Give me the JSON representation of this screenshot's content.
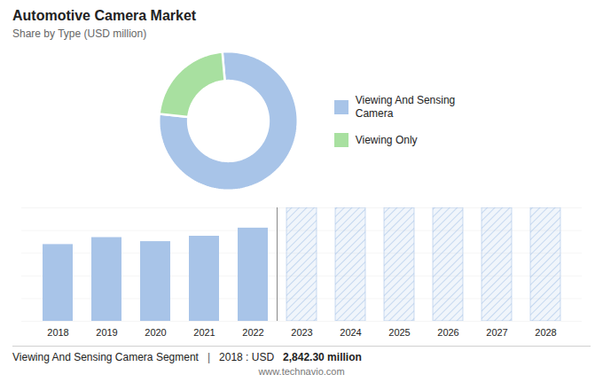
{
  "chart_data": [
    {
      "type": "pie",
      "title": "Automotive Camera Market",
      "subtitle": "Share by Type (USD million)",
      "categories": [
        "Viewing And Sensing\nCamera",
        "Viewing Only"
      ],
      "values": [
        78,
        22
      ],
      "colors": [
        "#a8c4e8",
        "#a8e0a0"
      ],
      "legend": "right"
    },
    {
      "type": "bar",
      "categories": [
        "2018",
        "2019",
        "2020",
        "2021",
        "2022",
        "2023",
        "2024",
        "2025",
        "2026",
        "2027",
        "2028"
      ],
      "values": [
        2842,
        3100,
        2950,
        3150,
        3450,
        4200,
        4200,
        4200,
        4200,
        4200,
        4200
      ],
      "color": "#a8c4e8",
      "colors": [
        "#a8c4e8",
        "#a8c4e8",
        "#a8c4e8",
        "#a8c4e8",
        "#a8c4e8",
        "#abc7eb2e",
        "#abc7eb2e",
        "#abc7eb2e",
        "#abc7eb2e",
        "#abc7eb2e",
        "#abc7eb2e"
      ],
      "ylim": [
        0,
        4200
      ],
      "yticks": [
        0,
        840,
        1680,
        2520,
        3360,
        4200
      ],
      "grid": true,
      "tick_labels": "x",
      "annotations": [
        "Viewing And Sensing Camera Segment",
        "|",
        "2018 : USD",
        "2,842.30 million",
        "www.technavio.com"
      ]
    }
  ]
}
